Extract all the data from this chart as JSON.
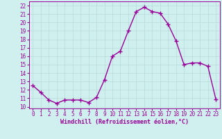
{
  "hours": [
    0,
    1,
    2,
    3,
    4,
    5,
    6,
    7,
    8,
    9,
    10,
    11,
    12,
    13,
    14,
    15,
    16,
    17,
    18,
    19,
    20,
    21,
    22,
    23
  ],
  "values": [
    12.5,
    11.7,
    10.8,
    10.4,
    10.8,
    10.8,
    10.8,
    10.5,
    11.1,
    13.2,
    16.0,
    16.6,
    19.0,
    21.3,
    21.8,
    21.3,
    21.1,
    19.8,
    17.8,
    15.0,
    15.2,
    15.2,
    14.8,
    10.9
  ],
  "line_color": "#990099",
  "marker": "+",
  "marker_size": 4,
  "bg_color": "#cff0ee",
  "grid_color": "#bbdddb",
  "xlabel": "Windchill (Refroidissement éolien,°C)",
  "ylabel_ticks": [
    10,
    11,
    12,
    13,
    14,
    15,
    16,
    17,
    18,
    19,
    20,
    21,
    22
  ],
  "ylim": [
    9.8,
    22.5
  ],
  "xlim": [
    -0.5,
    23.5
  ],
  "xlabel_color": "#990099",
  "tick_color": "#990099",
  "line_width": 1.0,
  "tick_fontsize": 5.5,
  "xlabel_fontsize": 6.0
}
